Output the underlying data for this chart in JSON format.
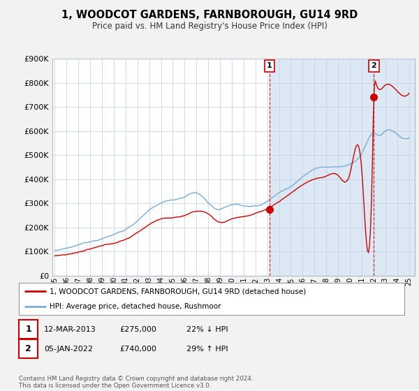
{
  "title": "1, WOODCOT GARDENS, FARNBOROUGH, GU14 9RD",
  "subtitle": "Price paid vs. HM Land Registry's House Price Index (HPI)",
  "legend_line1": "1, WOODCOT GARDENS, FARNBOROUGH, GU14 9RD (detached house)",
  "legend_line2": "HPI: Average price, detached house, Rushmoor",
  "sale1_date": "12-MAR-2013",
  "sale1_price": "£275,000",
  "sale1_hpi": "22% ↓ HPI",
  "sale1_year": 2013.2,
  "sale1_value": 275000,
  "sale2_date": "05-JAN-2022",
  "sale2_price": "£740,000",
  "sale2_hpi": "29% ↑ HPI",
  "sale2_year": 2022.03,
  "sale2_value": 740000,
  "ylim": [
    0,
    900000
  ],
  "xlim_start": 1994.8,
  "xlim_end": 2025.5,
  "red_color": "#cc0000",
  "blue_color": "#7aadd4",
  "shade_color": "#dce9f5",
  "background_color": "#dce9f5",
  "plot_bg_color": "#dce9f5",
  "grid_color": "#c0cfe0",
  "footer": "Contains HM Land Registry data © Crown copyright and database right 2024.\nThis data is licensed under the Open Government Licence v3.0."
}
